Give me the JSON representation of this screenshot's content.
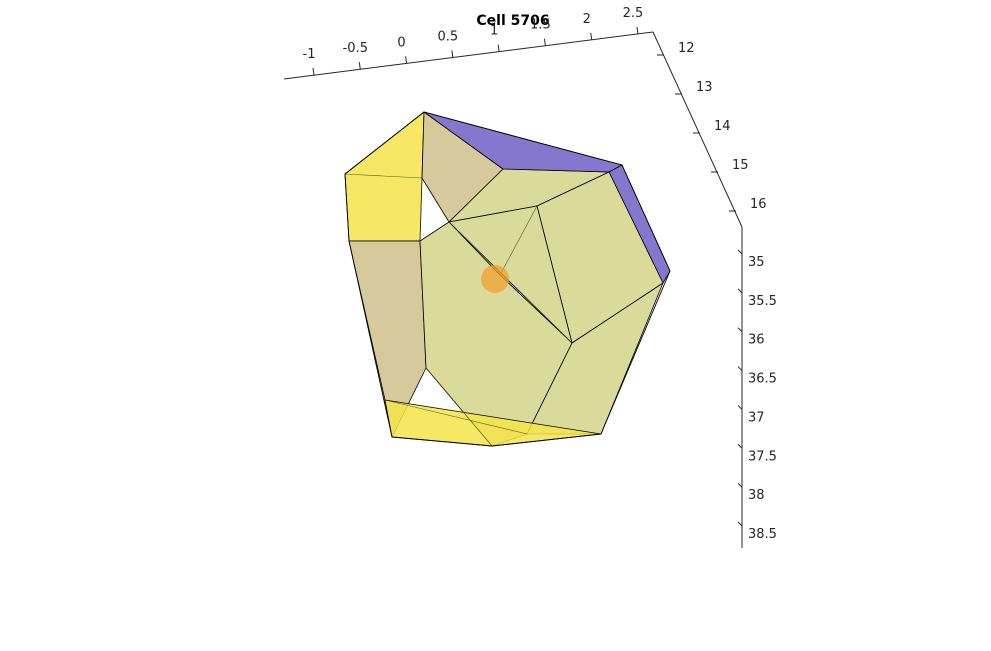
{
  "chart_data": {
    "type": "3d-polyhedron",
    "title": "Cell 5706",
    "axes": {
      "x": {
        "ticks": [
          "-1",
          "-0.5",
          "0",
          "0.5",
          "1",
          "1.5",
          "2",
          "2.5"
        ]
      },
      "y": {
        "ticks": [
          "12",
          "13",
          "14",
          "15",
          "16"
        ]
      },
      "z": {
        "ticks": [
          "35",
          "35.5",
          "36",
          "36.5",
          "37",
          "37.5",
          "38",
          "38.5"
        ]
      }
    },
    "grid": false,
    "colors": {
      "face_yellow": "#f5e44a",
      "face_tan": "#cfc08a",
      "face_olive": "#d3d38a",
      "face_blue": "#6f5fc4",
      "nucleus": "#f0a030"
    }
  }
}
